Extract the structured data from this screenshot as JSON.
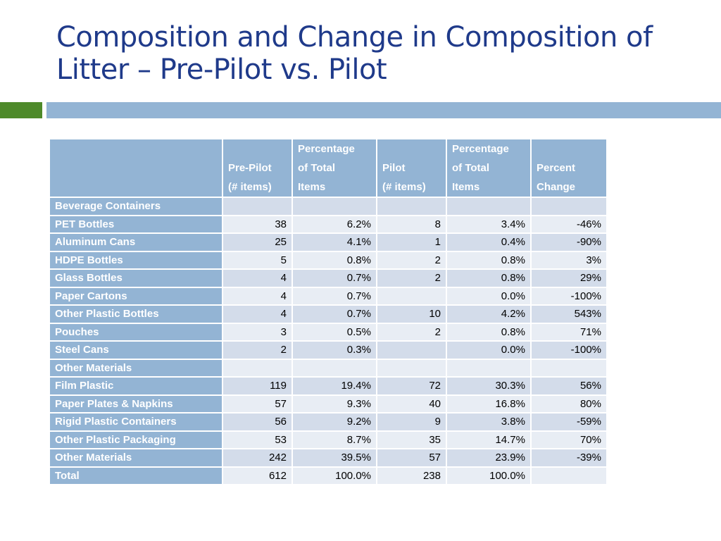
{
  "title": "Composition and Change in Composition of Litter – Pre-Pilot vs. Pilot",
  "table": {
    "headers": [
      {
        "key": "label",
        "lines": [
          ""
        ]
      },
      {
        "key": "pre_pilot",
        "lines": [
          "Pre-Pilot",
          "(# items)"
        ]
      },
      {
        "key": "pre_pct",
        "lines": [
          "Percentage",
          "of Total",
          "Items"
        ]
      },
      {
        "key": "pilot",
        "lines": [
          "Pilot",
          "(# items)"
        ]
      },
      {
        "key": "pilot_pct",
        "lines": [
          "Percentage",
          "of Total",
          "Items"
        ]
      },
      {
        "key": "change",
        "lines": [
          "Percent",
          "Change"
        ]
      }
    ],
    "rows": [
      [
        "Beverage Containers",
        "",
        "",
        "",
        "",
        ""
      ],
      [
        "PET Bottles",
        "38",
        "6.2%",
        "8",
        "3.4%",
        "-46%"
      ],
      [
        "Aluminum Cans",
        "25",
        "4.1%",
        "1",
        "0.4%",
        "-90%"
      ],
      [
        "HDPE Bottles",
        "5",
        "0.8%",
        "2",
        "0.8%",
        "3%"
      ],
      [
        "Glass Bottles",
        "4",
        "0.7%",
        "2",
        "0.8%",
        "29%"
      ],
      [
        "Paper Cartons",
        "4",
        "0.7%",
        "",
        "0.0%",
        "-100%"
      ],
      [
        "Other Plastic Bottles",
        "4",
        "0.7%",
        "10",
        "4.2%",
        "543%"
      ],
      [
        "Pouches",
        "3",
        "0.5%",
        "2",
        "0.8%",
        "71%"
      ],
      [
        "Steel Cans",
        "2",
        "0.3%",
        "",
        "0.0%",
        "-100%"
      ],
      [
        "Other Materials",
        "",
        "",
        "",
        "",
        ""
      ],
      [
        "Film Plastic",
        "119",
        "19.4%",
        "72",
        "30.3%",
        "56%"
      ],
      [
        "Paper Plates & Napkins",
        "57",
        "9.3%",
        "40",
        "16.8%",
        "80%"
      ],
      [
        "Rigid Plastic Containers",
        "56",
        "9.2%",
        "9",
        "3.8%",
        "-59%"
      ],
      [
        "Other Plastic Packaging",
        "53",
        "8.7%",
        "35",
        "14.7%",
        "70%"
      ],
      [
        "Other Materials",
        "242",
        "39.5%",
        "57",
        "23.9%",
        "-39%"
      ],
      [
        "Total",
        "612",
        "100.0%",
        "238",
        "100.0%",
        ""
      ]
    ]
  },
  "colors": {
    "title": "#1f3a8a",
    "accent_green": "#4e8a2a",
    "accent_blue": "#93b4d4",
    "row_light": "#e8edf4",
    "row_dark": "#d3dcea"
  }
}
